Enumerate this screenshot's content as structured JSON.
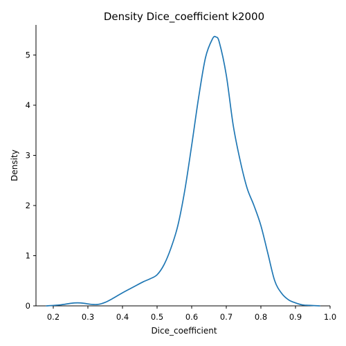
{
  "chart_data": {
    "type": "line",
    "title": "Density Dice_coefficient k2000",
    "xlabel": "Dice_coefficient",
    "ylabel": "Density",
    "xlim": [
      0.15,
      1.0
    ],
    "ylim": [
      0,
      5.6
    ],
    "xticks": [
      0.2,
      0.3,
      0.4,
      0.5,
      0.6,
      0.7,
      0.8,
      0.9,
      1.0
    ],
    "xtick_labels": [
      "0.2",
      "0.3",
      "0.4",
      "0.5",
      "0.6",
      "0.7",
      "0.8",
      "0.9",
      "1.0"
    ],
    "yticks": [
      0,
      1,
      2,
      3,
      4,
      5
    ],
    "ytick_labels": [
      "0",
      "1",
      "2",
      "3",
      "4",
      "5"
    ],
    "grid": false,
    "series": [
      {
        "color": "#1f77b4",
        "x": [
          0.18,
          0.22,
          0.25,
          0.27,
          0.29,
          0.31,
          0.33,
          0.35,
          0.37,
          0.4,
          0.43,
          0.46,
          0.48,
          0.5,
          0.52,
          0.54,
          0.56,
          0.58,
          0.6,
          0.62,
          0.64,
          0.66,
          0.67,
          0.68,
          0.7,
          0.72,
          0.74,
          0.76,
          0.78,
          0.8,
          0.82,
          0.84,
          0.86,
          0.88,
          0.9,
          0.92,
          0.94,
          0.97
        ],
        "y": [
          0.0,
          0.02,
          0.05,
          0.06,
          0.05,
          0.03,
          0.03,
          0.07,
          0.14,
          0.26,
          0.37,
          0.48,
          0.54,
          0.62,
          0.82,
          1.15,
          1.6,
          2.3,
          3.2,
          4.15,
          4.95,
          5.32,
          5.36,
          5.25,
          4.6,
          3.6,
          2.9,
          2.35,
          2.0,
          1.6,
          1.05,
          0.5,
          0.25,
          0.12,
          0.06,
          0.02,
          0.01,
          0.0
        ]
      }
    ]
  }
}
